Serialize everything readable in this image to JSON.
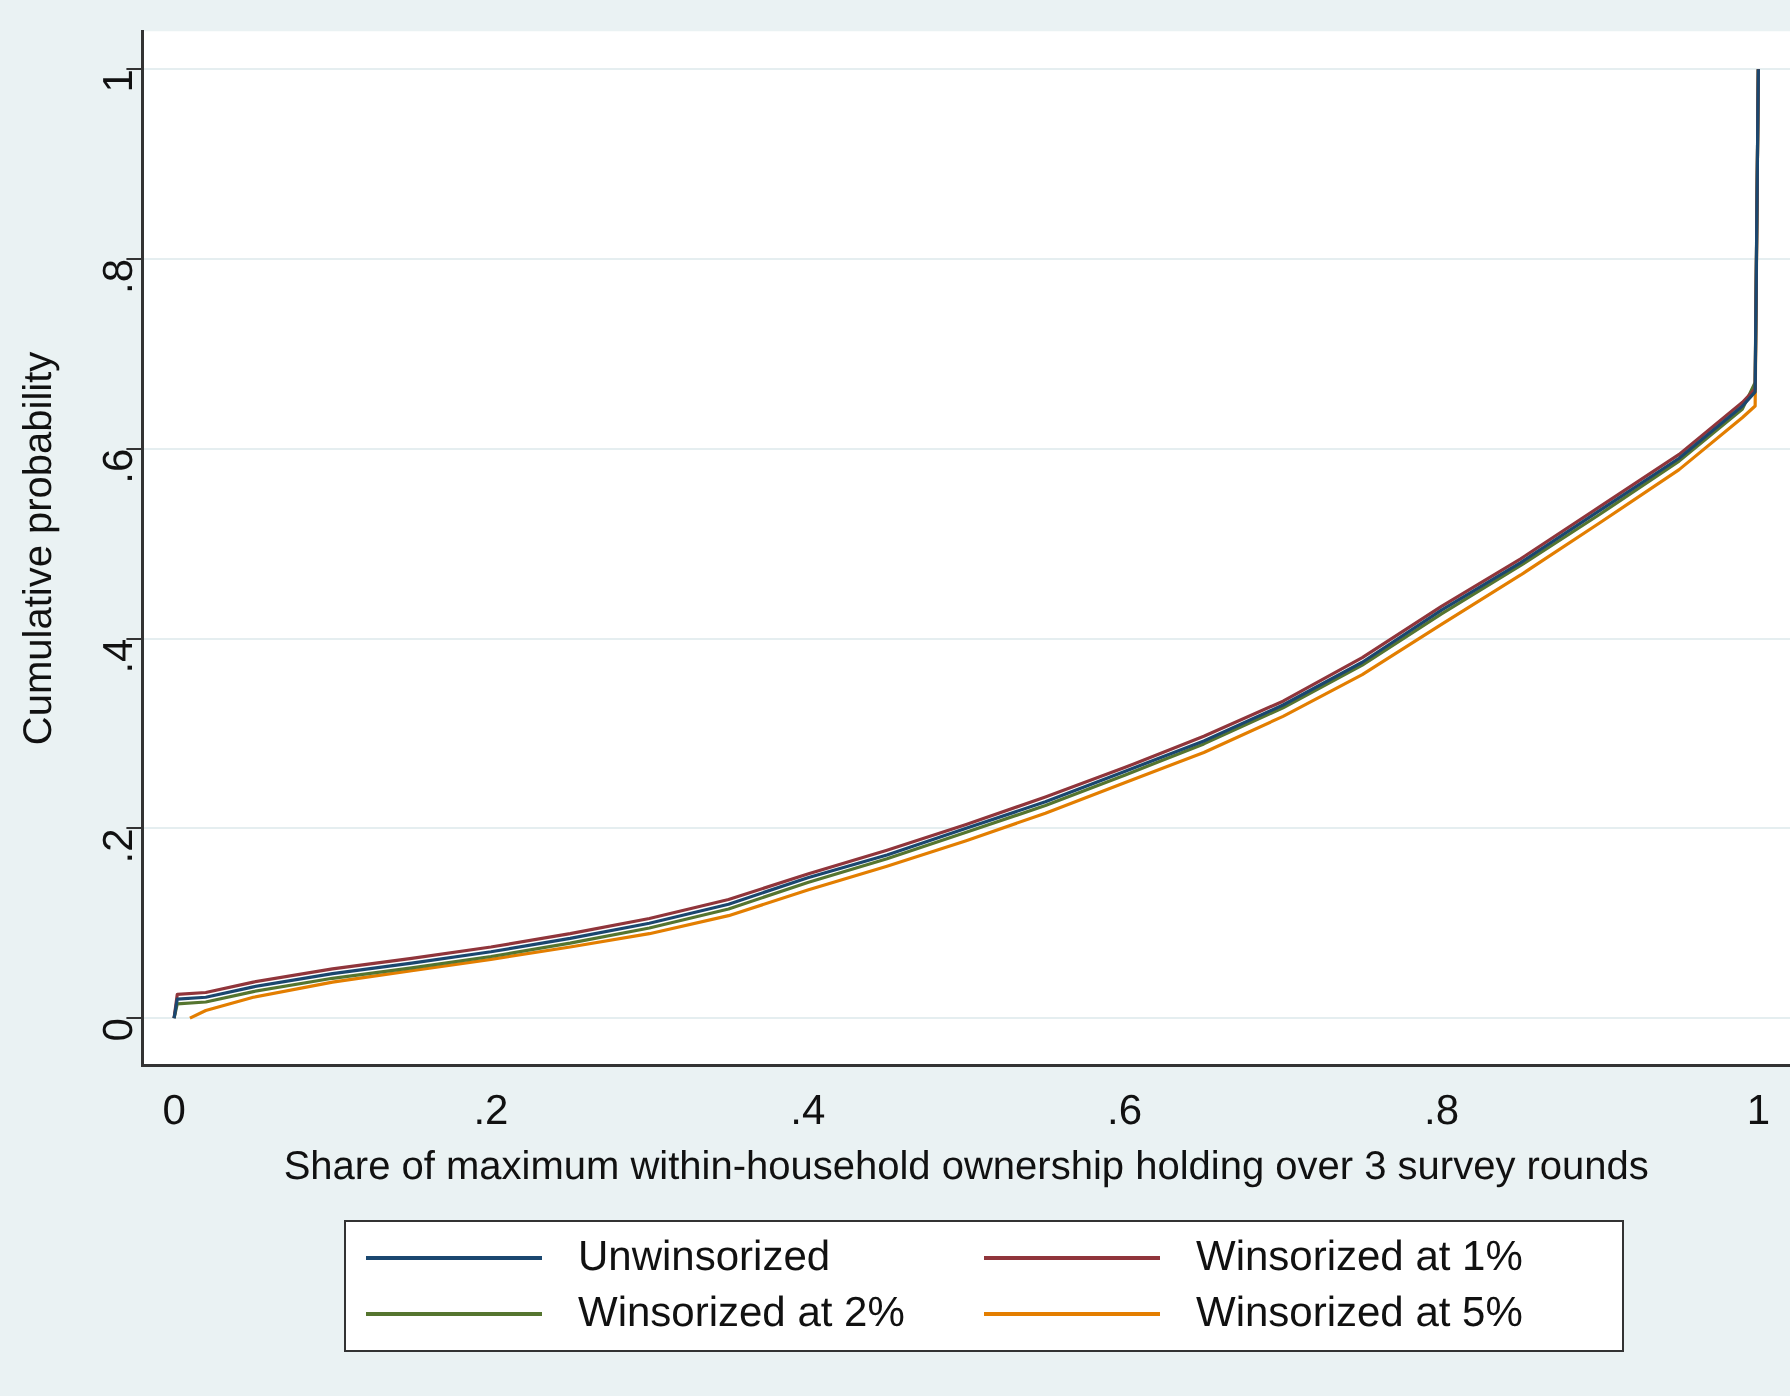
{
  "chart_data": {
    "type": "line",
    "xlabel": "Share of maximum within-household ownership holding over 3 survey rounds",
    "ylabel": "Cumulative probability",
    "x": [
      0,
      0.002,
      0.02,
      0.05,
      0.1,
      0.15,
      0.2,
      0.25,
      0.3,
      0.35,
      0.4,
      0.45,
      0.5,
      0.55,
      0.6,
      0.65,
      0.7,
      0.75,
      0.8,
      0.85,
      0.9,
      0.95,
      0.99,
      0.998,
      1
    ],
    "series": [
      {
        "name": "Unwinsorized",
        "color": "#1a476f",
        "values": [
          0,
          0.02,
          0.022,
          0.033,
          0.047,
          0.058,
          0.07,
          0.084,
          0.1,
          0.12,
          0.148,
          0.172,
          0.2,
          0.228,
          0.26,
          0.292,
          0.33,
          0.375,
          0.43,
          0.48,
          0.535,
          0.59,
          0.645,
          0.66,
          1
        ]
      },
      {
        "name": "Winsorized at 1%",
        "color": "#90353b",
        "values": [
          0,
          0.025,
          0.027,
          0.038,
          0.052,
          0.063,
          0.075,
          0.089,
          0.105,
          0.125,
          0.152,
          0.177,
          0.204,
          0.233,
          0.264,
          0.297,
          0.334,
          0.38,
          0.434,
          0.484,
          0.539,
          0.594,
          0.649,
          0.663,
          1
        ]
      },
      {
        "name": "Winsorized at 2%",
        "color": "#55752f",
        "values": [
          0,
          0.015,
          0.017,
          0.028,
          0.042,
          0.053,
          0.065,
          0.079,
          0.095,
          0.115,
          0.143,
          0.168,
          0.196,
          0.224,
          0.256,
          0.289,
          0.327,
          0.372,
          0.426,
          0.477,
          0.531,
          0.587,
          0.642,
          0.67,
          1
        ]
      },
      {
        "name": "Winsorized at 5%",
        "color": "#e37e00",
        "x": [
          0.01,
          0.02,
          0.05,
          0.1,
          0.15,
          0.2,
          0.25,
          0.3,
          0.35,
          0.4,
          0.45,
          0.5,
          0.55,
          0.6,
          0.65,
          0.7,
          0.75,
          0.8,
          0.85,
          0.9,
          0.95,
          0.99,
          0.998,
          1
        ],
        "values": [
          0,
          0.008,
          0.022,
          0.038,
          0.05,
          0.062,
          0.075,
          0.089,
          0.108,
          0.135,
          0.16,
          0.187,
          0.216,
          0.248,
          0.28,
          0.318,
          0.362,
          0.415,
          0.467,
          0.522,
          0.578,
          0.633,
          0.645,
          1
        ]
      }
    ],
    "xlim": [
      -0.02,
      1.02
    ],
    "ylim": [
      -0.05,
      1.04
    ],
    "xticks": [
      0,
      {
        "value": 0.2,
        "label": ".2"
      },
      {
        "value": 0.4,
        "label": ".4"
      },
      {
        "value": 0.6,
        "label": ".6"
      },
      {
        "value": 0.8,
        "label": ".8"
      },
      1
    ],
    "yticks": [
      0,
      {
        "value": 0.2,
        "label": ".2"
      },
      {
        "value": 0.4,
        "label": ".4"
      },
      {
        "value": 0.6,
        "label": ".6"
      },
      {
        "value": 0.8,
        "label": ".8"
      },
      1
    ],
    "grid": "y",
    "legend": "bottom",
    "marker": "none",
    "line_style": "solid"
  }
}
